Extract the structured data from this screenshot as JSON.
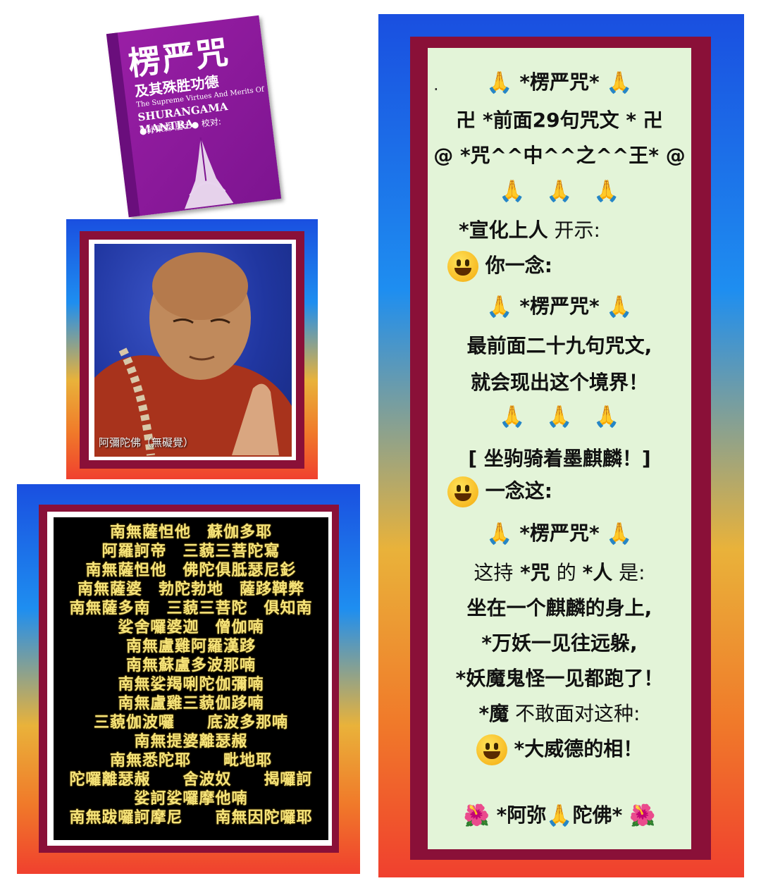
{
  "book": {
    "title": "楞严咒",
    "subtitle": "及其殊胜功德",
    "english_line1": "The Supreme Virtues And Merits Of",
    "english_line2": "SHURANGAMA MANTRA",
    "author": "●孙果森 居士● 校对:",
    "icon": "praying-hands-icon"
  },
  "photo": {
    "caption": "阿彌陀佛（無礙覺）"
  },
  "mantra_lines": [
    "南無薩怛他　蘇伽多耶",
    "阿羅訶帝　三藐三菩陀寫",
    "南無薩怛他　佛陀俱胝瑟尼釤",
    "南無薩婆　勃陀勃地　薩跢鞞弊",
    "南無薩多南　三藐三菩陀　俱知南",
    "娑舍囉婆迦　僧伽喃",
    "南無盧雞阿羅漢跢",
    "南無蘇盧多波那喃",
    "南無娑羯唎陀伽彌喃",
    "南無盧雞三藐伽跢喃",
    "三藐伽波囉　　底波多那喃",
    "南無提婆離瑟赧",
    "南無悉陀耶　　毗地耶",
    "陀囉離瑟赧　　舍波奴　　揭囉訶",
    "娑訶娑囉摩他喃",
    "南無跋囉訶摩尼　　南無因陀囉耶"
  ],
  "panel": {
    "lead_dot": ".",
    "title": "*楞严咒*",
    "line_29": "卍 *前面29句咒文 * 卍",
    "line_king": "@ *咒^^中^^之^^王* @",
    "master_bold": "*宣化上人",
    "master_thin": " 开示:",
    "ni_yi_nian": "你一念:",
    "title2": "*楞严咒*",
    "front_29a": "最前面二十九句咒文,",
    "front_29b": "就会现出这个境界！",
    "bracket": "[ 坐驹骑着墨麒麟！]",
    "yi_nian_zhe": "一念这:",
    "title3": "*楞严咒*",
    "hold_a": "这持",
    "hold_b": " *咒",
    "hold_c": " 的 ",
    "hold_d": "*人",
    "hold_e": " 是:",
    "sit": "坐在一个麒麟的身上,",
    "monsters_flee": "*万妖一见往远躲,",
    "demons_run": "*妖魔鬼怪一见都跑了！",
    "mo_bold": "*魔",
    "mo_thin": " 不敢面对这种:",
    "virtue": "*大威德的相！",
    "amituo_a": "*阿弥",
    "amituo_b": "陀佛*"
  },
  "emoji": {
    "pray": "🙏",
    "flower": "🌺"
  },
  "colors": {
    "maroon": "#8a1038",
    "panel_bg": "#e3f4d8",
    "mantra_text": "#f6e47a",
    "book_purple": "#8a1a9c"
  }
}
